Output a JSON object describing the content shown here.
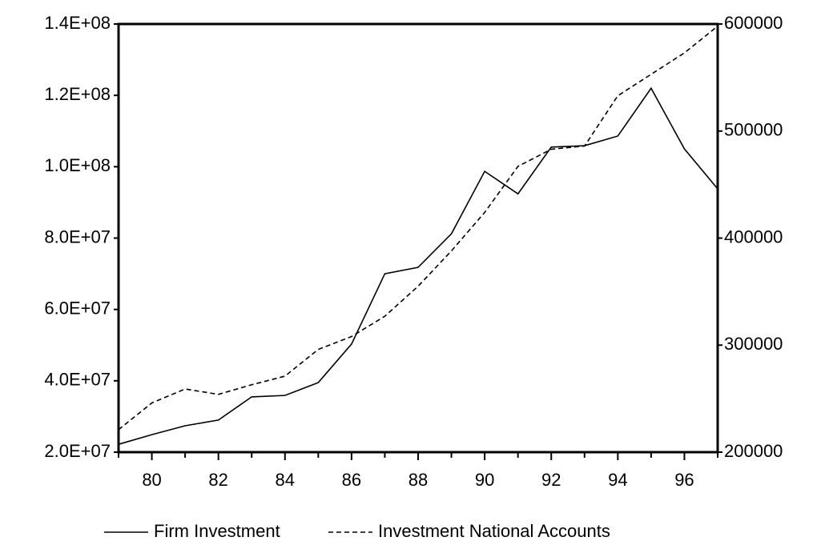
{
  "chart_data": {
    "type": "line",
    "x": [
      79,
      80,
      81,
      82,
      83,
      84,
      85,
      86,
      87,
      88,
      89,
      90,
      91,
      92,
      93,
      94,
      95,
      96,
      97
    ],
    "xlim": [
      79,
      97
    ],
    "xticks": [
      80,
      82,
      84,
      86,
      88,
      90,
      92,
      94,
      96
    ],
    "xminorticks": [
      79,
      81,
      83,
      85,
      87,
      89,
      91,
      93,
      95,
      97
    ],
    "ylim": [
      20000000,
      140000000
    ],
    "yticks": [
      {
        "value": 20000000,
        "label": "2.0E+07"
      },
      {
        "value": 40000000,
        "label": "4.0E+07"
      },
      {
        "value": 60000000,
        "label": "6.0E+07"
      },
      {
        "value": 80000000,
        "label": "8.0E+07"
      },
      {
        "value": 100000000,
        "label": "1.0E+08"
      },
      {
        "value": 120000000,
        "label": "1.2E+08"
      },
      {
        "value": 140000000,
        "label": "1.4E+08"
      }
    ],
    "y2lim": [
      200000,
      600000
    ],
    "y2ticks": [
      200000,
      300000,
      400000,
      500000,
      600000
    ],
    "series": [
      {
        "name": "Firm Investment",
        "color": "#000000",
        "dash": "solid",
        "values": [
          22200000,
          24900000,
          27400000,
          29000000,
          35500000,
          35900000,
          39500000,
          50300000,
          70000000,
          71800000,
          81200000,
          98700000,
          92400000,
          105500000,
          105900000,
          108600000,
          122000000,
          105000000,
          93800000
        ]
      },
      {
        "name": "Investment National Accounts",
        "color": "#000000",
        "dash": "dashed",
        "axis": "y2",
        "values": [
          221000,
          246000,
          259000,
          254000,
          263000,
          271000,
          296000,
          308000,
          327000,
          355000,
          388000,
          424000,
          467000,
          483000,
          486000,
          533000,
          553000,
          573000,
          598000
        ]
      }
    ]
  }
}
